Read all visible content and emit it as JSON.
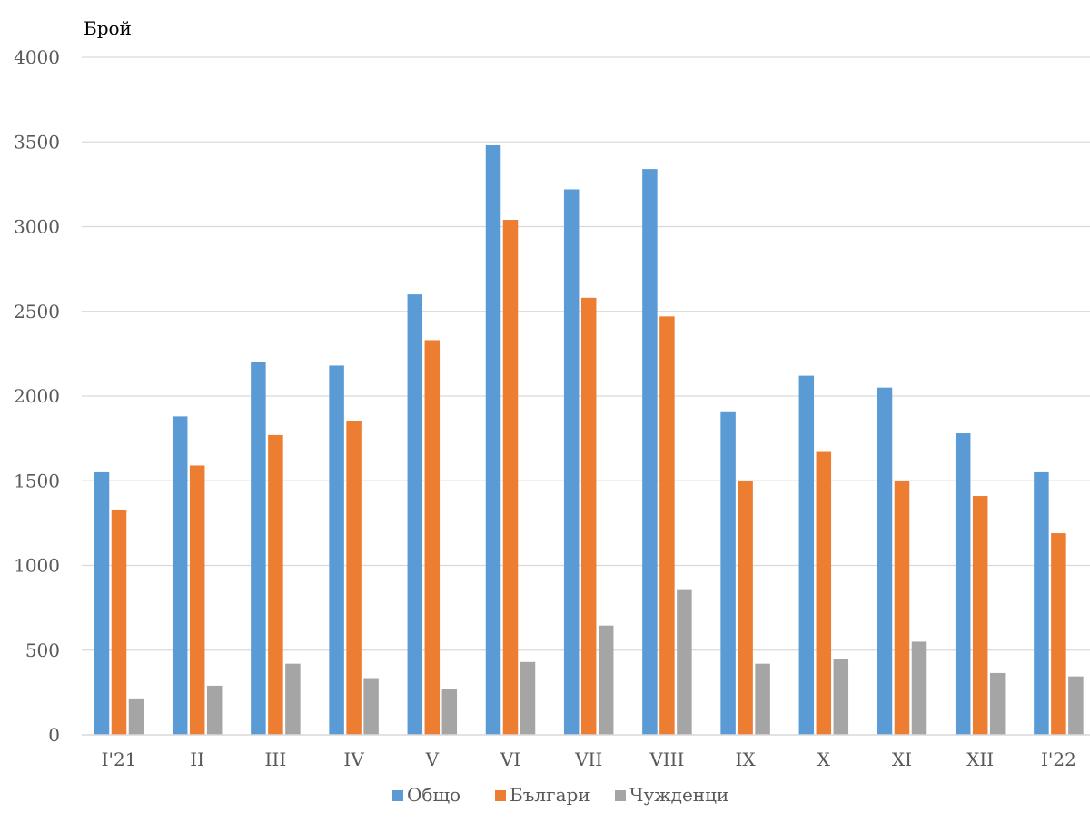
{
  "chart_data": {
    "type": "bar",
    "ylabel": "Брой",
    "xlabel": "",
    "ylim": [
      0,
      4000
    ],
    "yticks": [
      0,
      500,
      1000,
      1500,
      2000,
      2500,
      3000,
      3500,
      4000
    ],
    "categories": [
      "I'21",
      "II",
      "III",
      "IV",
      "V",
      "VI",
      "VII",
      "VIII",
      "IX",
      "X",
      "XI",
      "XII",
      "I'22"
    ],
    "series": [
      {
        "name": "Общо",
        "color": "#5b9bd5",
        "values": [
          1550,
          1880,
          2200,
          2180,
          2600,
          3480,
          3220,
          3340,
          1910,
          2120,
          2050,
          1780,
          1550
        ]
      },
      {
        "name": "Българи",
        "color": "#ed7d31",
        "values": [
          1330,
          1590,
          1770,
          1850,
          2330,
          3040,
          2580,
          2470,
          1500,
          1670,
          1500,
          1410,
          1190
        ]
      },
      {
        "name": "Чужденци",
        "color": "#a5a5a5",
        "values": [
          215,
          290,
          420,
          335,
          270,
          430,
          645,
          860,
          420,
          445,
          550,
          365,
          345
        ]
      }
    ],
    "grid": true,
    "legend_position": "bottom"
  }
}
